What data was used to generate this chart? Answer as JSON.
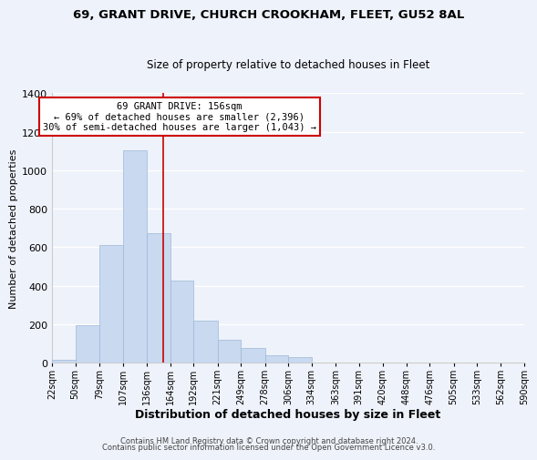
{
  "title": "69, GRANT DRIVE, CHURCH CROOKHAM, FLEET, GU52 8AL",
  "subtitle": "Size of property relative to detached houses in Fleet",
  "xlabel": "Distribution of detached houses by size in Fleet",
  "ylabel": "Number of detached properties",
  "bar_left_edges": [
    22,
    50,
    79,
    107,
    136,
    164,
    192,
    221,
    249,
    278,
    306,
    334,
    363,
    391,
    420,
    448,
    476,
    505,
    533,
    562
  ],
  "bar_widths": [
    28,
    29,
    28,
    29,
    28,
    28,
    29,
    28,
    29,
    28,
    28,
    29,
    28,
    29,
    28,
    28,
    29,
    28,
    29,
    28
  ],
  "bar_heights": [
    15,
    195,
    610,
    1105,
    670,
    425,
    220,
    120,
    75,
    38,
    28,
    0,
    0,
    0,
    0,
    0,
    0,
    0,
    0,
    0
  ],
  "bar_color": "#c8d9f0",
  "bar_edge_color": "#a0b8d8",
  "tick_labels": [
    "22sqm",
    "50sqm",
    "79sqm",
    "107sqm",
    "136sqm",
    "164sqm",
    "192sqm",
    "221sqm",
    "249sqm",
    "278sqm",
    "306sqm",
    "334sqm",
    "363sqm",
    "391sqm",
    "420sqm",
    "448sqm",
    "476sqm",
    "505sqm",
    "533sqm",
    "562sqm",
    "590sqm"
  ],
  "ylim": [
    0,
    1400
  ],
  "yticks": [
    0,
    200,
    400,
    600,
    800,
    1000,
    1200,
    1400
  ],
  "vline_x": 156,
  "vline_color": "#cc0000",
  "annotation_text": "69 GRANT DRIVE: 156sqm\n← 69% of detached houses are smaller (2,396)\n30% of semi-detached houses are larger (1,043) →",
  "annotation_box_color": "#ffffff",
  "annotation_box_edge": "#cc0000",
  "footer_line1": "Contains HM Land Registry data © Crown copyright and database right 2024.",
  "footer_line2": "Contains public sector information licensed under the Open Government Licence v3.0.",
  "background_color": "#eef2fa",
  "grid_color": "#ffffff",
  "title_fontsize": 9.5,
  "subtitle_fontsize": 8.5,
  "xlabel_fontsize": 9,
  "ylabel_fontsize": 8,
  "tick_fontsize": 7,
  "annotation_fontsize": 7.5,
  "footer_fontsize": 6
}
